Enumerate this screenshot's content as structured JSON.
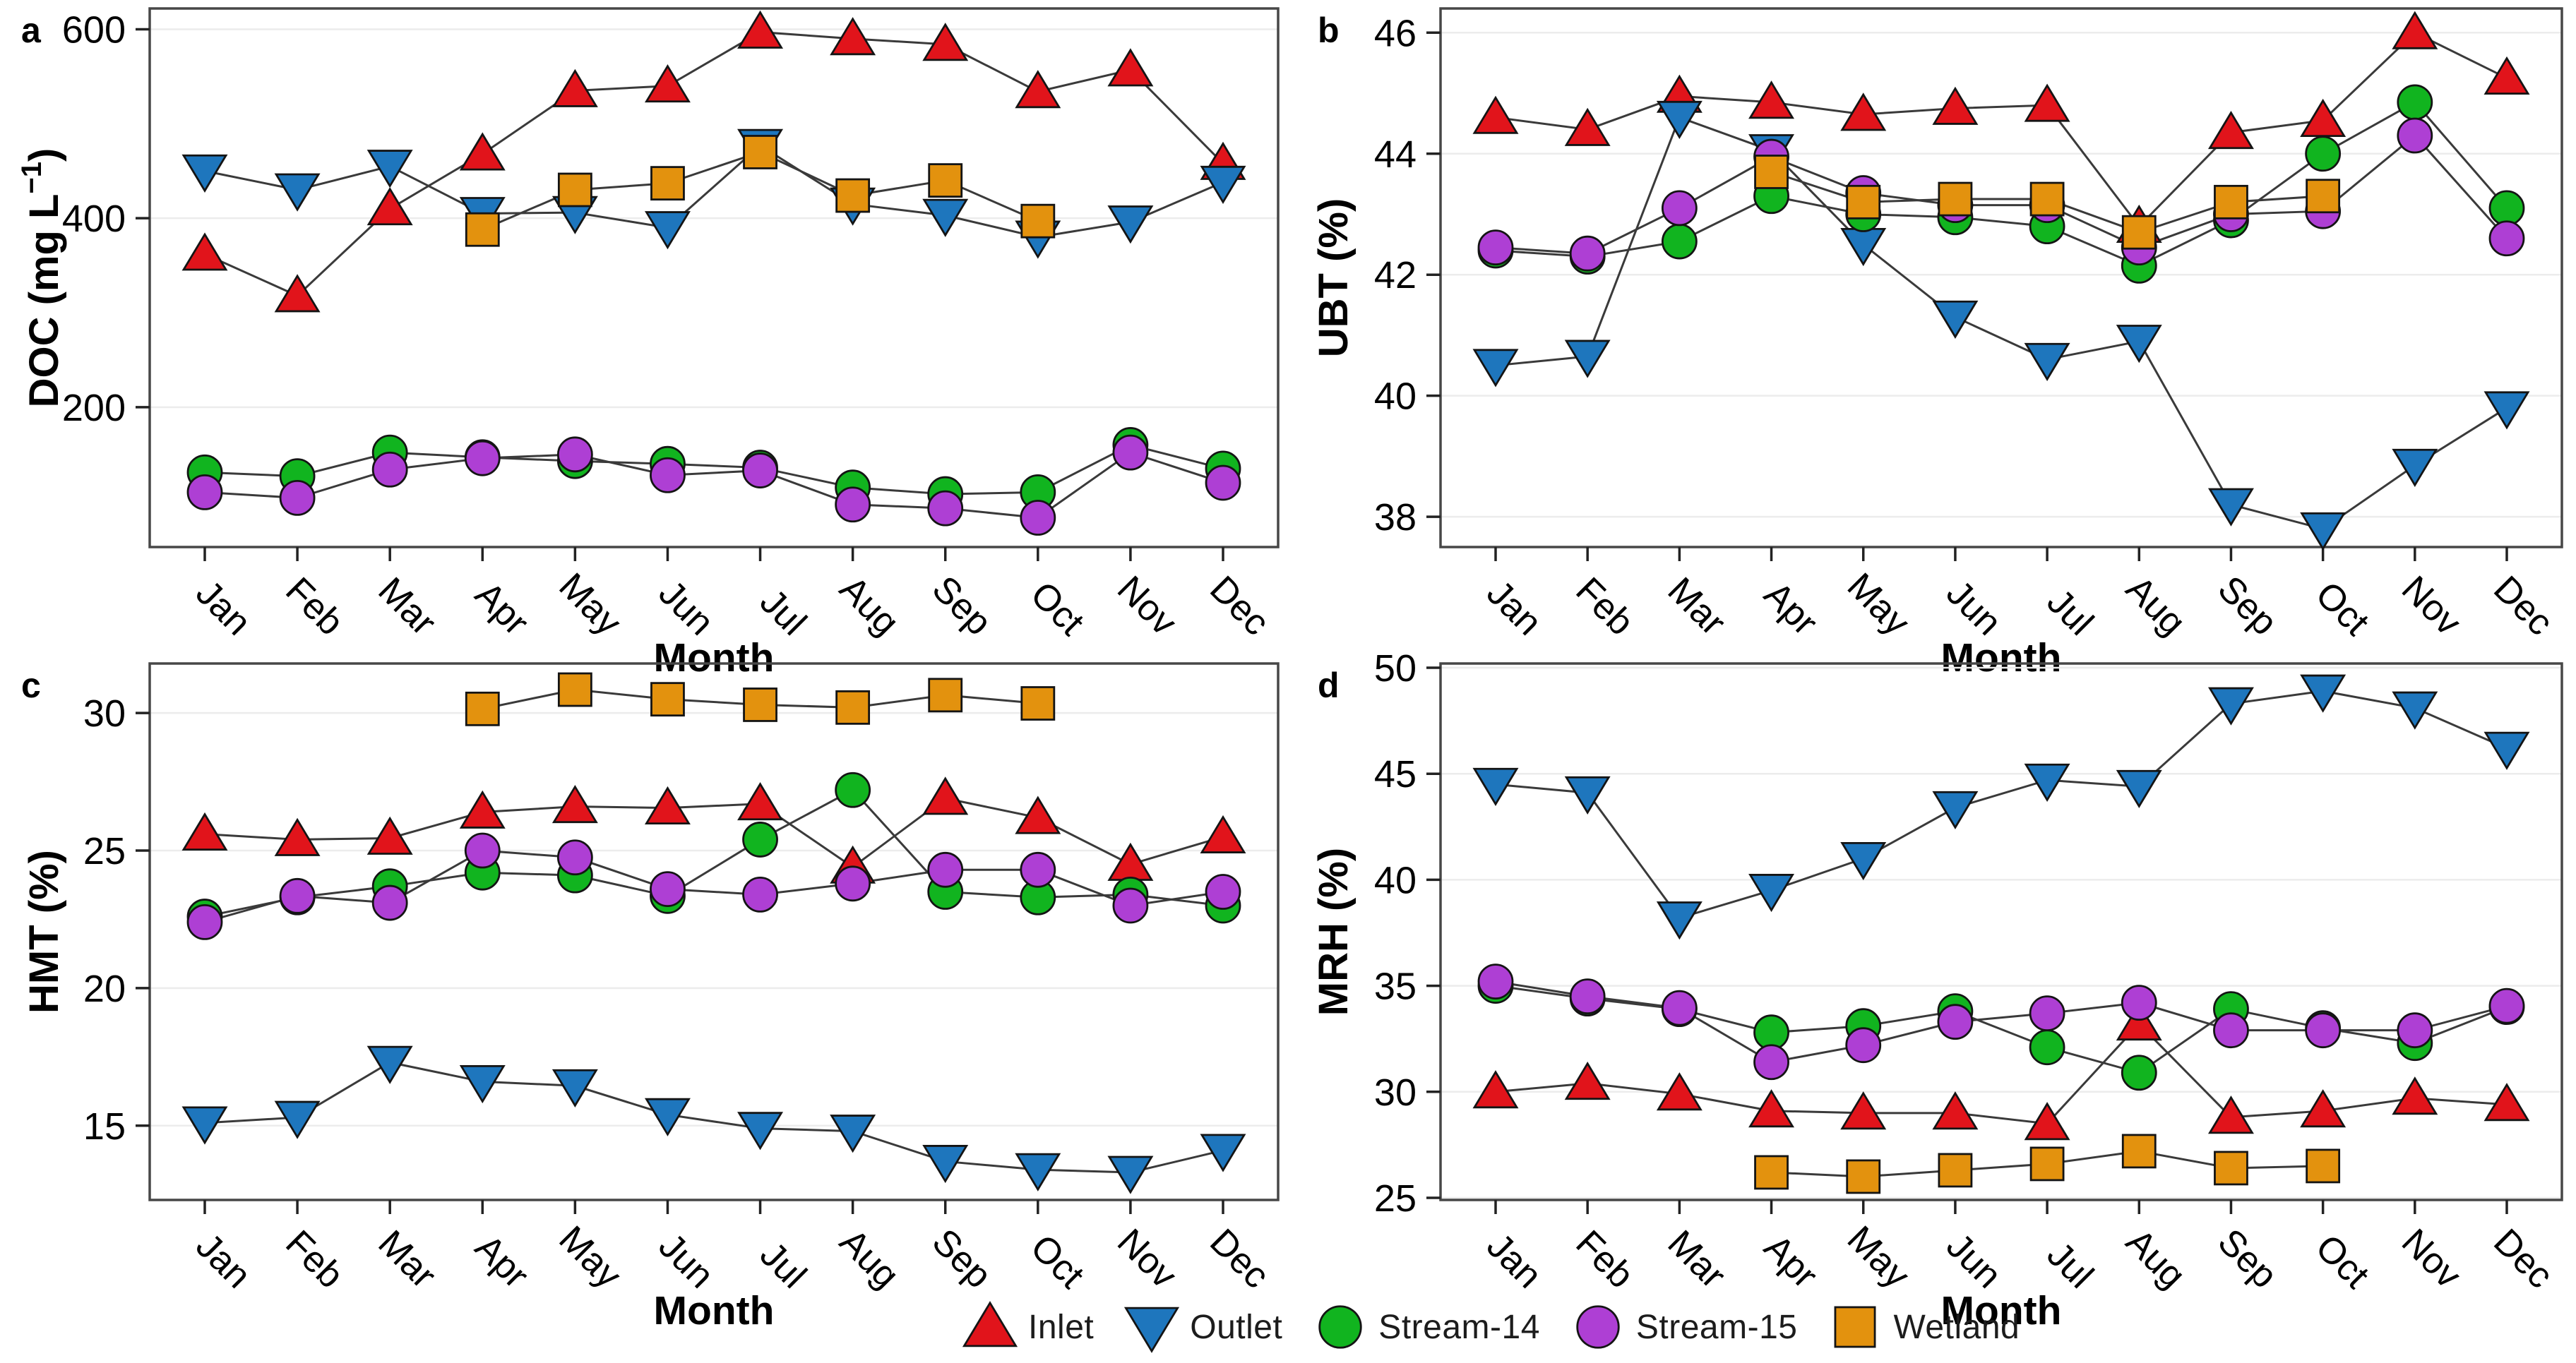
{
  "figure": {
    "panel_letters": [
      "a",
      "b",
      "c",
      "d"
    ],
    "xlabel": "Month",
    "colors": {
      "inlet": "#e1141b",
      "outlet": "#1e76bd",
      "stream14": "#11b41f",
      "stream15": "#ae3fd4",
      "wetland": "#e3920e",
      "line": "#3a3a3a",
      "grid": "#ececec",
      "frame": "#474747"
    },
    "legend": {
      "items": [
        {
          "label": "Inlet",
          "marker": "triangle-up",
          "color": "#e1141b"
        },
        {
          "label": "Outlet",
          "marker": "triangle-down",
          "color": "#1e76bd"
        },
        {
          "label": "Stream-14",
          "marker": "circle",
          "color": "#11b41f"
        },
        {
          "label": "Stream-15",
          "marker": "circle",
          "color": "#ae3fd4"
        },
        {
          "label": "Wetland",
          "marker": "square",
          "color": "#e3920e"
        }
      ]
    }
  },
  "chart_data": [
    {
      "panel": "a",
      "type": "line",
      "title": "",
      "xlabel": "Month",
      "ylabel": "DOC (mg L⁻¹)",
      "categories": [
        "Jan",
        "Feb",
        "Mar",
        "Apr",
        "May",
        "Jun",
        "Jul",
        "Aug",
        "Sep",
        "Oct",
        "Nov",
        "Dec"
      ],
      "yticks": [
        200,
        400,
        600
      ],
      "ylim": [
        52,
        622
      ],
      "grid": true,
      "series": [
        {
          "name": "Inlet",
          "marker": "triangle-up",
          "color": "#e1141b",
          "values": [
            362,
            318,
            410,
            468,
            535,
            540,
            597,
            590,
            584,
            534,
            557,
            458
          ]
        },
        {
          "name": "Outlet",
          "marker": "triangle-down",
          "color": "#1e76bd",
          "values": [
            450,
            430,
            455,
            405,
            406,
            390,
            477,
            415,
            403,
            380,
            396,
            438
          ]
        },
        {
          "name": "Stream-14",
          "marker": "circle",
          "color": "#11b41f",
          "values": [
            131,
            127,
            152,
            147,
            143,
            140,
            136,
            115,
            108,
            110,
            160,
            135
          ]
        },
        {
          "name": "Stream-15",
          "marker": "circle",
          "color": "#ae3fd4",
          "values": [
            110,
            104,
            134,
            146,
            150,
            128,
            133,
            97,
            93,
            83,
            152,
            120
          ]
        },
        {
          "name": "Wetland",
          "marker": "square",
          "color": "#e3920e",
          "values": [
            null,
            null,
            null,
            388,
            430,
            437,
            470,
            424,
            440,
            397,
            null,
            null
          ]
        }
      ]
    },
    {
      "panel": "b",
      "type": "line",
      "title": "",
      "xlabel": "Month",
      "ylabel": "UBT (%)",
      "categories": [
        "Jan",
        "Feb",
        "Mar",
        "Apr",
        "May",
        "Jun",
        "Jul",
        "Aug",
        "Sep",
        "Oct",
        "Nov",
        "Dec"
      ],
      "yticks": [
        38,
        40,
        42,
        44,
        46
      ],
      "ylim": [
        37.5,
        46.4
      ],
      "grid": true,
      "series": [
        {
          "name": "Inlet",
          "marker": "triangle-up",
          "color": "#e1141b",
          "values": [
            44.6,
            44.4,
            44.95,
            44.85,
            44.65,
            44.75,
            44.8,
            42.8,
            44.35,
            44.55,
            46.0,
            45.25
          ]
        },
        {
          "name": "Outlet",
          "marker": "triangle-down",
          "color": "#1e76bd",
          "values": [
            40.5,
            40.65,
            44.6,
            44.05,
            42.5,
            41.3,
            40.6,
            40.9,
            38.2,
            37.8,
            38.85,
            39.8
          ]
        },
        {
          "name": "Stream-14",
          "marker": "circle",
          "color": "#11b41f",
          "values": [
            42.4,
            42.3,
            42.55,
            43.3,
            43.0,
            42.95,
            42.8,
            42.15,
            42.9,
            44.0,
            44.85,
            43.1
          ]
        },
        {
          "name": "Stream-15",
          "marker": "circle",
          "color": "#ae3fd4",
          "values": [
            42.45,
            42.35,
            43.1,
            43.95,
            43.35,
            43.15,
            43.15,
            42.45,
            43.0,
            43.05,
            44.3,
            42.6
          ]
        },
        {
          "name": "Wetland",
          "marker": "square",
          "color": "#e3920e",
          "values": [
            null,
            null,
            null,
            43.7,
            43.2,
            43.25,
            43.25,
            42.7,
            43.2,
            43.3,
            null,
            null
          ]
        }
      ]
    },
    {
      "panel": "c",
      "type": "line",
      "title": "",
      "xlabel": "Month",
      "ylabel": "HMT (%)",
      "categories": [
        "Jan",
        "Feb",
        "Mar",
        "Apr",
        "May",
        "Jun",
        "Jul",
        "Aug",
        "Sep",
        "Oct",
        "Nov",
        "Dec"
      ],
      "yticks": [
        15,
        20,
        25,
        30
      ],
      "ylim": [
        12.3,
        31.8
      ],
      "grid": true,
      "series": [
        {
          "name": "Inlet",
          "marker": "triangle-up",
          "color": "#e1141b",
          "values": [
            25.6,
            25.4,
            25.45,
            26.4,
            26.6,
            26.55,
            26.7,
            24.4,
            26.9,
            26.2,
            24.5,
            25.5
          ]
        },
        {
          "name": "Outlet",
          "marker": "triangle-down",
          "color": "#1e76bd",
          "values": [
            15.1,
            15.3,
            17.3,
            16.6,
            16.45,
            15.4,
            14.9,
            14.8,
            13.7,
            13.4,
            13.3,
            14.1
          ]
        },
        {
          "name": "Stream-14",
          "marker": "circle",
          "color": "#11b41f",
          "values": [
            22.6,
            23.3,
            23.7,
            24.2,
            24.1,
            23.35,
            25.4,
            27.2,
            23.5,
            23.3,
            23.4,
            23.0
          ]
        },
        {
          "name": "Stream-15",
          "marker": "circle",
          "color": "#ae3fd4",
          "values": [
            22.4,
            23.35,
            23.1,
            25.0,
            24.75,
            23.6,
            23.4,
            23.8,
            24.3,
            24.3,
            23.0,
            23.5
          ]
        },
        {
          "name": "Wetland",
          "marker": "square",
          "color": "#e3920e",
          "values": [
            null,
            null,
            null,
            30.15,
            30.85,
            30.5,
            30.3,
            30.2,
            30.65,
            30.35,
            null,
            null
          ]
        }
      ]
    },
    {
      "panel": "d",
      "type": "line",
      "title": "",
      "xlabel": "Month",
      "ylabel": "MRH (%)",
      "categories": [
        "Jan",
        "Feb",
        "Mar",
        "Apr",
        "May",
        "Jun",
        "Jul",
        "Aug",
        "Sep",
        "Oct",
        "Nov",
        "Dec"
      ],
      "yticks": [
        25,
        30,
        35,
        40,
        45,
        50
      ],
      "ylim": [
        24.9,
        50.2
      ],
      "grid": true,
      "series": [
        {
          "name": "Inlet",
          "marker": "triangle-up",
          "color": "#e1141b",
          "values": [
            30.0,
            30.4,
            29.9,
            29.1,
            29.0,
            29.0,
            28.5,
            33.2,
            28.8,
            29.1,
            29.7,
            29.4
          ]
        },
        {
          "name": "Outlet",
          "marker": "triangle-down",
          "color": "#1e76bd",
          "values": [
            44.5,
            44.1,
            38.2,
            39.5,
            41.0,
            43.4,
            44.7,
            44.4,
            48.3,
            48.9,
            48.1,
            46.2
          ]
        },
        {
          "name": "Stream-14",
          "marker": "circle",
          "color": "#11b41f",
          "values": [
            35.0,
            34.4,
            33.9,
            32.8,
            33.1,
            33.8,
            32.1,
            30.9,
            33.9,
            33.0,
            32.3,
            34.0
          ]
        },
        {
          "name": "Stream-15",
          "marker": "circle",
          "color": "#ae3fd4",
          "values": [
            35.2,
            34.5,
            33.95,
            31.4,
            32.2,
            33.3,
            33.7,
            34.2,
            32.9,
            32.9,
            32.9,
            34.05
          ]
        },
        {
          "name": "Wetland",
          "marker": "square",
          "color": "#e3920e",
          "values": [
            null,
            null,
            null,
            26.2,
            26.0,
            26.3,
            26.6,
            27.2,
            26.4,
            26.5,
            null,
            null
          ]
        }
      ]
    }
  ]
}
